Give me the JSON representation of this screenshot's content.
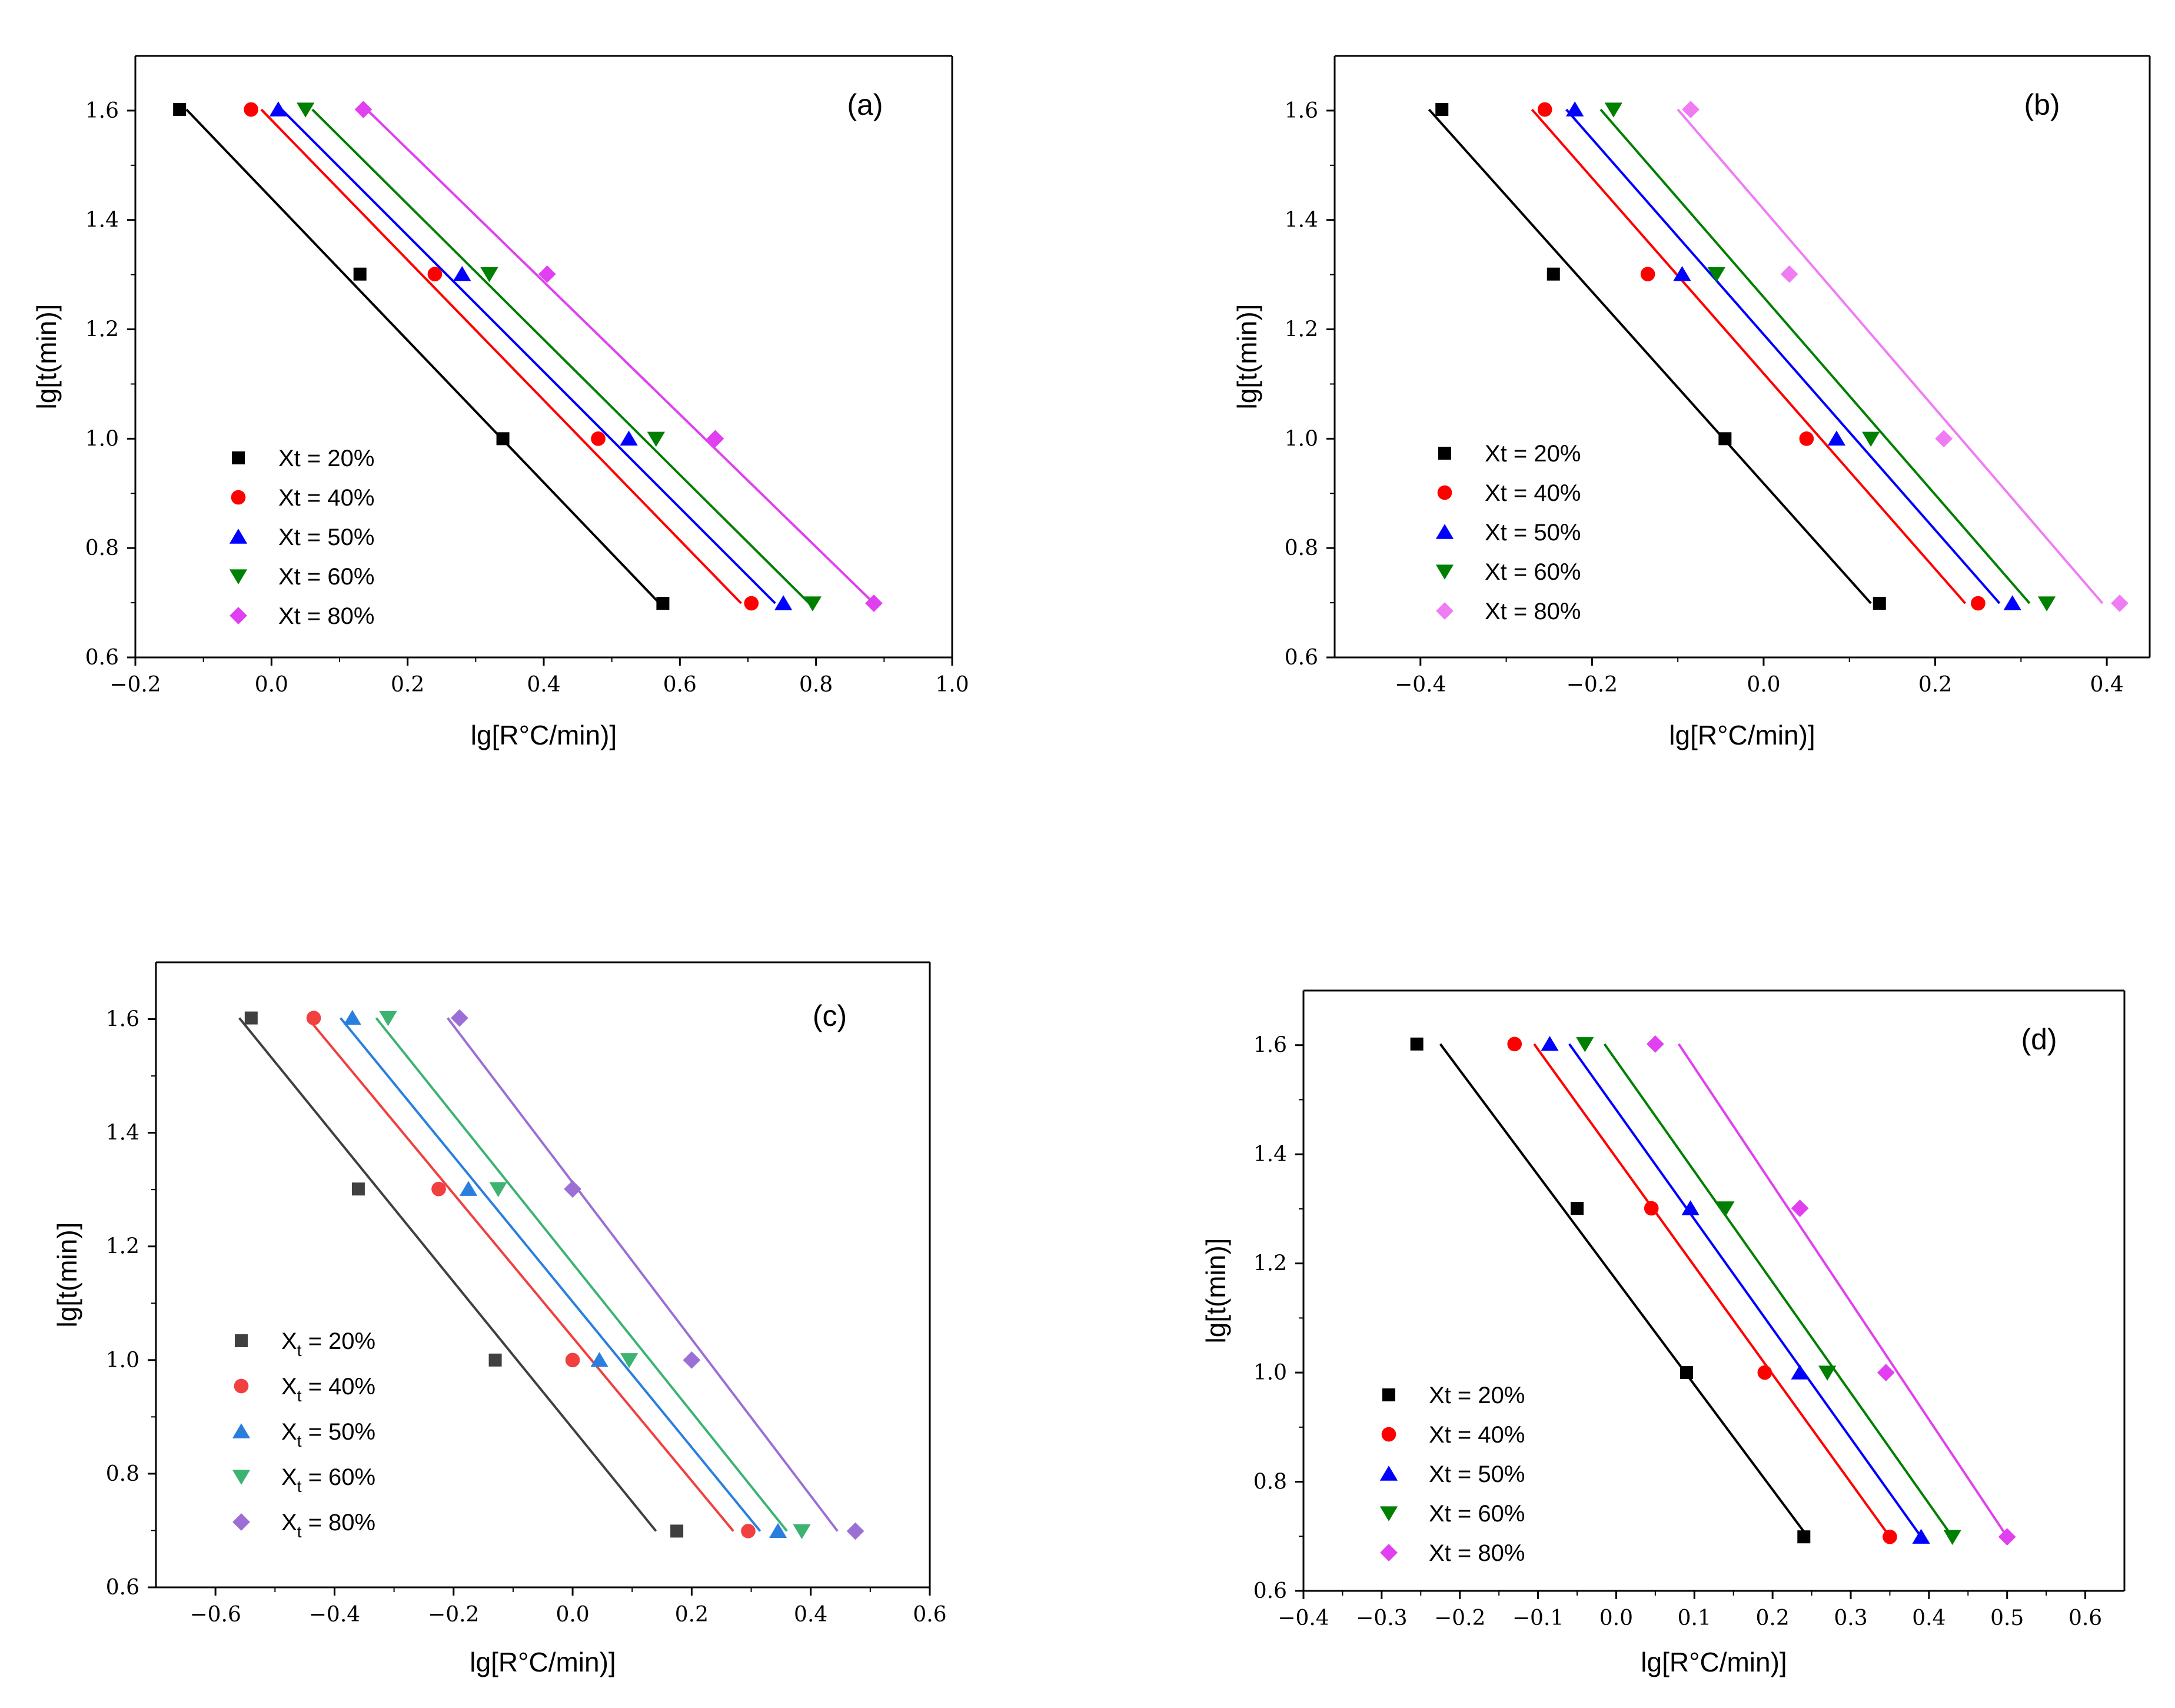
{
  "figure": {
    "title": ""
  },
  "chart_data": [
    {
      "type": "scatter",
      "panel_label": "(a)",
      "xlabel": "lg[R°C/min)]",
      "ylabel": "lg[t(min)]",
      "xlim": [
        -0.2,
        1.0
      ],
      "ylim": [
        0.6,
        1.7
      ],
      "xticks": [
        -0.2,
        0.0,
        0.2,
        0.4,
        0.6,
        0.8,
        1.0
      ],
      "xtick_labels": [
        "−0.2",
        "0.0",
        "0.2",
        "0.4",
        "0.6",
        "0.8",
        "1.0"
      ],
      "yticks": [
        0.6,
        0.8,
        1.0,
        1.2,
        1.4,
        1.6
      ],
      "ytick_labels": [
        "0.6",
        "0.8",
        "1.0",
        "1.2",
        "1.4",
        "1.6"
      ],
      "legend_position": "bottom-left",
      "legend_subscript": false,
      "series": [
        {
          "name": "Xt = 20%",
          "color": "#000000",
          "marker": "square",
          "x": [
            -0.135,
            0.13,
            0.34,
            0.575
          ],
          "y": [
            1.602,
            1.301,
            1.0,
            0.699
          ],
          "fit": [
            [
              -0.125,
              1.602
            ],
            [
              0.57,
              0.699
            ]
          ]
        },
        {
          "name": "Xt = 40%",
          "color": "#ff0000",
          "marker": "circle",
          "x": [
            -0.03,
            0.24,
            0.48,
            0.705
          ],
          "y": [
            1.602,
            1.301,
            1.0,
            0.699
          ],
          "fit": [
            [
              -0.015,
              1.602
            ],
            [
              0.69,
              0.699
            ]
          ]
        },
        {
          "name": "Xt = 50%",
          "color": "#0000ff",
          "marker": "triangle-up",
          "x": [
            0.01,
            0.28,
            0.525,
            0.752
          ],
          "y": [
            1.602,
            1.301,
            1.0,
            0.699
          ],
          "fit": [
            [
              0.015,
              1.602
            ],
            [
              0.74,
              0.699
            ]
          ]
        },
        {
          "name": "Xt = 60%",
          "color": "#008000",
          "marker": "triangle-down",
          "x": [
            0.05,
            0.32,
            0.565,
            0.795
          ],
          "y": [
            1.602,
            1.301,
            1.0,
            0.699
          ],
          "fit": [
            [
              0.06,
              1.602
            ],
            [
              0.79,
              0.699
            ]
          ]
        },
        {
          "name": "Xt = 80%",
          "color": "#e040f0",
          "marker": "diamond",
          "x": [
            0.135,
            0.405,
            0.652,
            0.885
          ],
          "y": [
            1.602,
            1.301,
            1.0,
            0.699
          ],
          "fit": [
            [
              0.14,
              1.602
            ],
            [
              0.885,
              0.699
            ]
          ]
        }
      ]
    },
    {
      "type": "scatter",
      "panel_label": "(b)",
      "xlabel": "lg[R°C/min)]",
      "ylabel": "lg[t(min)]",
      "xlim": [
        -0.5,
        0.45
      ],
      "ylim": [
        0.6,
        1.7
      ],
      "xticks": [
        -0.4,
        -0.2,
        0.0,
        0.2,
        0.4
      ],
      "xtick_labels": [
        "−0.4",
        "−0.2",
        "0.0",
        "0.2",
        "0.4"
      ],
      "yticks": [
        0.6,
        0.8,
        1.0,
        1.2,
        1.4,
        1.6
      ],
      "ytick_labels": [
        "0.6",
        "0.8",
        "1.0",
        "1.2",
        "1.4",
        "1.6"
      ],
      "legend_position": "bottom-left",
      "legend_subscript": false,
      "series": [
        {
          "name": "Xt = 20%",
          "color": "#000000",
          "marker": "square",
          "x": [
            -0.375,
            -0.245,
            -0.045,
            0.135
          ],
          "y": [
            1.602,
            1.301,
            1.0,
            0.699
          ],
          "fit": [
            [
              -0.39,
              1.602
            ],
            [
              0.125,
              0.699
            ]
          ]
        },
        {
          "name": "Xt = 40%",
          "color": "#ff0000",
          "marker": "circle",
          "x": [
            -0.255,
            -0.135,
            0.05,
            0.25
          ],
          "y": [
            1.602,
            1.301,
            1.0,
            0.699
          ],
          "fit": [
            [
              -0.27,
              1.602
            ],
            [
              0.235,
              0.699
            ]
          ]
        },
        {
          "name": "Xt = 50%",
          "color": "#0000ff",
          "marker": "triangle-up",
          "x": [
            -0.22,
            -0.095,
            0.085,
            0.29
          ],
          "y": [
            1.602,
            1.301,
            1.0,
            0.699
          ],
          "fit": [
            [
              -0.23,
              1.602
            ],
            [
              0.275,
              0.699
            ]
          ]
        },
        {
          "name": "Xt = 60%",
          "color": "#008000",
          "marker": "triangle-down",
          "x": [
            -0.175,
            -0.055,
            0.125,
            0.33
          ],
          "y": [
            1.602,
            1.301,
            1.0,
            0.699
          ],
          "fit": [
            [
              -0.19,
              1.602
            ],
            [
              0.31,
              0.699
            ]
          ]
        },
        {
          "name": "Xt = 80%",
          "color": "#f07cf4",
          "marker": "diamond",
          "x": [
            -0.085,
            0.03,
            0.21,
            0.415
          ],
          "y": [
            1.602,
            1.301,
            1.0,
            0.699
          ],
          "fit": [
            [
              -0.1,
              1.602
            ],
            [
              0.395,
              0.699
            ]
          ]
        }
      ]
    },
    {
      "type": "scatter",
      "panel_label": "(c)",
      "xlabel": "lg[R°C/min)]",
      "ylabel": "lg[t(min)]",
      "xlim": [
        -0.7,
        0.6
      ],
      "ylim": [
        0.6,
        1.7
      ],
      "xticks": [
        -0.6,
        -0.4,
        -0.2,
        0.0,
        0.2,
        0.4,
        0.6
      ],
      "xtick_labels": [
        "−0.6",
        "−0.4",
        "−0.2",
        "0.0",
        "0.2",
        "0.4",
        "0.6"
      ],
      "yticks": [
        0.6,
        0.8,
        1.0,
        1.2,
        1.4,
        1.6
      ],
      "ytick_labels": [
        "0.6",
        "0.8",
        "1.0",
        "1.2",
        "1.4",
        "1.6"
      ],
      "legend_position": "bottom-left",
      "legend_subscript": true,
      "series": [
        {
          "name": "Xt = 20%",
          "label_main": "X",
          "label_sub": "t",
          "label_rest": " = 20%",
          "color": "#404040",
          "marker": "square",
          "x": [
            -0.54,
            -0.36,
            -0.13,
            0.175
          ],
          "y": [
            1.602,
            1.301,
            1.0,
            0.699
          ],
          "fit": [
            [
              -0.56,
              1.602
            ],
            [
              0.14,
              0.699
            ]
          ]
        },
        {
          "name": "Xt = 40%",
          "label_main": "X",
          "label_sub": "t",
          "label_rest": " = 40%",
          "color": "#f04040",
          "marker": "circle",
          "x": [
            -0.435,
            -0.225,
            0.0,
            0.295
          ],
          "y": [
            1.602,
            1.301,
            1.0,
            0.699
          ],
          "fit": [
            [
              -0.445,
              1.602
            ],
            [
              0.27,
              0.699
            ]
          ]
        },
        {
          "name": "Xt = 50%",
          "label_main": "X",
          "label_sub": "t",
          "label_rest": " = 50%",
          "color": "#2a7fde",
          "marker": "triangle-up",
          "x": [
            -0.37,
            -0.175,
            0.045,
            0.345
          ],
          "y": [
            1.602,
            1.301,
            1.0,
            0.699
          ],
          "fit": [
            [
              -0.39,
              1.602
            ],
            [
              0.315,
              0.699
            ]
          ]
        },
        {
          "name": "Xt = 60%",
          "label_main": "X",
          "label_sub": "t",
          "label_rest": " = 60%",
          "color": "#3cb371",
          "marker": "triangle-down",
          "x": [
            -0.31,
            -0.125,
            0.095,
            0.385
          ],
          "y": [
            1.602,
            1.301,
            1.0,
            0.699
          ],
          "fit": [
            [
              -0.33,
              1.602
            ],
            [
              0.36,
              0.699
            ]
          ]
        },
        {
          "name": "Xt = 80%",
          "label_main": "X",
          "label_sub": "t",
          "label_rest": " = 80%",
          "color": "#9b6fd6",
          "marker": "diamond",
          "x": [
            -0.19,
            0.0,
            0.2,
            0.475
          ],
          "y": [
            1.602,
            1.301,
            1.0,
            0.699
          ],
          "fit": [
            [
              -0.21,
              1.602
            ],
            [
              0.445,
              0.699
            ]
          ]
        }
      ]
    },
    {
      "type": "scatter",
      "panel_label": "(d)",
      "xlabel": "lg[R°C/min)]",
      "ylabel": "lg[t(min)]",
      "xlim": [
        -0.4,
        0.65
      ],
      "ylim": [
        0.6,
        1.7
      ],
      "xticks": [
        -0.4,
        -0.3,
        -0.2,
        -0.1,
        0.0,
        0.1,
        0.2,
        0.3,
        0.4,
        0.5,
        0.6
      ],
      "xtick_labels": [
        "−0.4",
        "−0.3",
        "−0.2",
        "−0.1",
        "0.0",
        "0.1",
        "0.2",
        "0.3",
        "0.4",
        "0.5",
        "0.6"
      ],
      "yticks": [
        0.6,
        0.8,
        1.0,
        1.2,
        1.4,
        1.6
      ],
      "ytick_labels": [
        "0.6",
        "0.8",
        "1.0",
        "1.2",
        "1.4",
        "1.6"
      ],
      "legend_position": "bottom-left",
      "legend_subscript": false,
      "series": [
        {
          "name": "Xt = 20%",
          "color": "#000000",
          "marker": "square",
          "x": [
            -0.255,
            -0.05,
            0.09,
            0.24
          ],
          "y": [
            1.602,
            1.301,
            1.0,
            0.699
          ],
          "fit": [
            [
              -0.225,
              1.602
            ],
            [
              0.245,
              0.699
            ]
          ]
        },
        {
          "name": "Xt = 40%",
          "color": "#ff0000",
          "marker": "circle",
          "x": [
            -0.13,
            0.045,
            0.19,
            0.35
          ],
          "y": [
            1.602,
            1.301,
            1.0,
            0.699
          ],
          "fit": [
            [
              -0.105,
              1.602
            ],
            [
              0.35,
              0.699
            ]
          ]
        },
        {
          "name": "Xt = 50%",
          "color": "#0000ff",
          "marker": "triangle-up",
          "x": [
            -0.085,
            0.095,
            0.235,
            0.39
          ],
          "y": [
            1.602,
            1.301,
            1.0,
            0.699
          ],
          "fit": [
            [
              -0.06,
              1.602
            ],
            [
              0.39,
              0.699
            ]
          ]
        },
        {
          "name": "Xt = 60%",
          "color": "#008000",
          "marker": "triangle-down",
          "x": [
            -0.04,
            0.14,
            0.27,
            0.43
          ],
          "y": [
            1.602,
            1.301,
            1.0,
            0.699
          ],
          "fit": [
            [
              -0.015,
              1.602
            ],
            [
              0.43,
              0.699
            ]
          ]
        },
        {
          "name": "Xt = 80%",
          "color": "#e040f0",
          "marker": "diamond",
          "x": [
            0.05,
            0.235,
            0.345,
            0.5
          ],
          "y": [
            1.602,
            1.301,
            1.0,
            0.699
          ],
          "fit": [
            [
              0.08,
              1.602
            ],
            [
              0.5,
              0.699
            ]
          ]
        }
      ]
    }
  ]
}
